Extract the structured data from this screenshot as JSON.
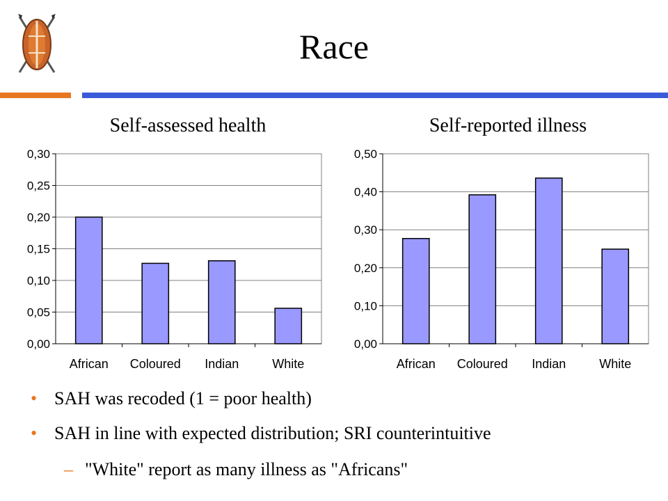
{
  "header": {
    "title": "Race"
  },
  "icons": {
    "logo": "shield-spears-logo"
  },
  "colors": {
    "accent_orange": "#e87722",
    "accent_blue": "#3a5bd9",
    "bar_fill": "#9999ff"
  },
  "chart_data": [
    {
      "type": "bar",
      "title": "Self-assessed health",
      "categories": [
        "African",
        "Coloured",
        "Indian",
        "White"
      ],
      "values": [
        0.2,
        0.127,
        0.131,
        0.056
      ],
      "ylim": [
        0,
        0.3
      ],
      "yticks": [
        "0,00",
        "0,05",
        "0,10",
        "0,15",
        "0,20",
        "0,25",
        "0,30"
      ],
      "tick_step": 0.05,
      "grid": true,
      "legend": "none"
    },
    {
      "type": "bar",
      "title": "Self-reported illness",
      "categories": [
        "African",
        "Coloured",
        "Indian",
        "White"
      ],
      "values": [
        0.277,
        0.392,
        0.436,
        0.249
      ],
      "ylim": [
        0,
        0.5
      ],
      "yticks": [
        "0,00",
        "0,10",
        "0,20",
        "0,30",
        "0,40",
        "0,50"
      ],
      "tick_step": 0.1,
      "grid": true,
      "legend": "none"
    }
  ],
  "bullets": {
    "items": [
      "SAH was recoded (1 = poor health)",
      "SAH in line with expected distribution; SRI counterintuitive"
    ],
    "sub_items": [
      "\"White\" report as many illness as \"Africans\""
    ],
    "bullet_glyph": "•",
    "dash_glyph": "–"
  }
}
